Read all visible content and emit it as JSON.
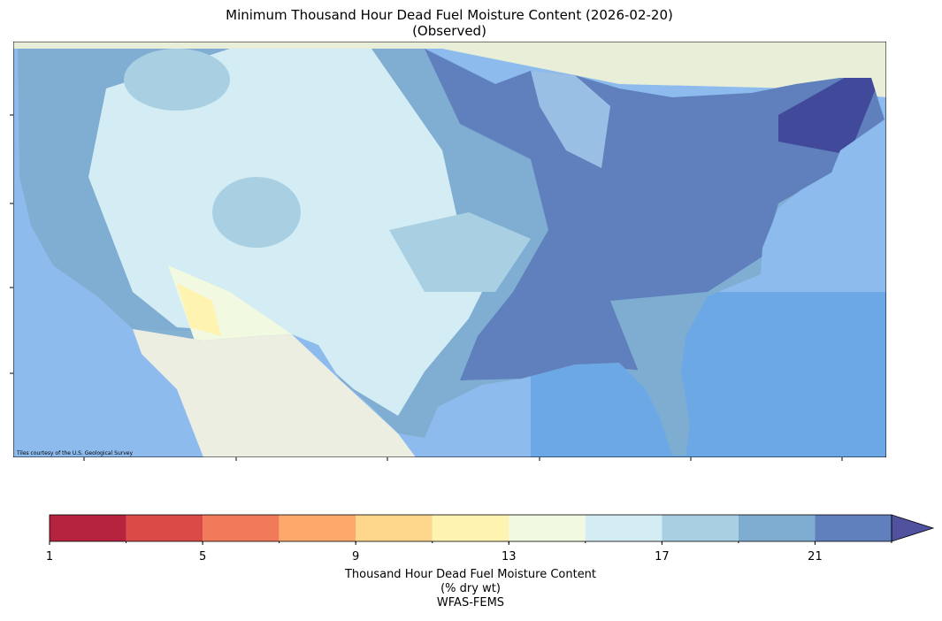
{
  "map": {
    "title": [
      "Minimum Thousand Hour Dead Fuel Moisture Content (2026-02-20)",
      "(Observed)"
    ],
    "attribution": "Tiles courtesy of the U.S. Geological Survey",
    "colorbar": {
      "bounds": [
        1,
        3,
        5,
        7,
        9,
        11,
        13,
        15,
        17,
        19,
        21,
        23
      ],
      "colors": [
        "#b5233f",
        "#da4a47",
        "#f07a5a",
        "#fca96b",
        "#fed68c",
        "#fef3b0",
        "#f1f9e1",
        "#d4ecf3",
        "#a8d0e2",
        "#7fadd1",
        "#5f80bd"
      ],
      "extend_color": "#5052a0",
      "ticks": [
        1,
        5,
        9,
        13,
        17,
        21
      ],
      "label": [
        "Thousand Hour Dead Fuel Moisture Content",
        "(% dry wt)",
        "WFAS-FEMS"
      ]
    }
  }
}
